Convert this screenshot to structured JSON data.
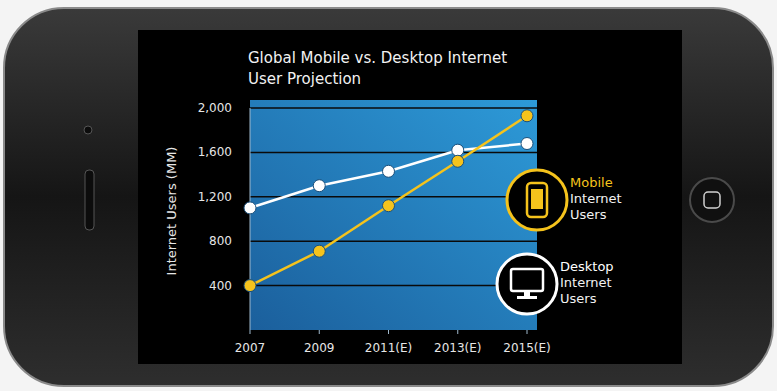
{
  "chart_data": {
    "type": "line",
    "title": "Global Mobile vs. Desktop Internet User Projection",
    "y_label": "Internet Users (MM)",
    "x": [
      2007,
      2009,
      2011,
      2013,
      2015
    ],
    "xlim": [
      2007,
      2015
    ],
    "xticks": [
      2007,
      2009,
      {
        "value": 2011,
        "label": "2011(E)"
      },
      {
        "value": 2013,
        "label": "2013(E)"
      },
      {
        "value": 2015,
        "label": "2015(E)"
      }
    ],
    "ylim": [
      0,
      2000
    ],
    "yticks": [
      400,
      800,
      {
        "value": 1200,
        "label": "1,200"
      },
      {
        "value": 1600,
        "label": "1,600"
      },
      {
        "value": 2000,
        "label": "2,000"
      }
    ],
    "grid": true,
    "legend": "right",
    "marker": "circle",
    "series": [
      {
        "name": "Mobile Internet Users",
        "color": "#f5c31c",
        "values": [
          400,
          710,
          1120,
          1520,
          1930
        ]
      },
      {
        "name": "Desktop Internet Users",
        "color": "#ffffff",
        "values": [
          1100,
          1300,
          1430,
          1620,
          1680
        ]
      }
    ]
  }
}
